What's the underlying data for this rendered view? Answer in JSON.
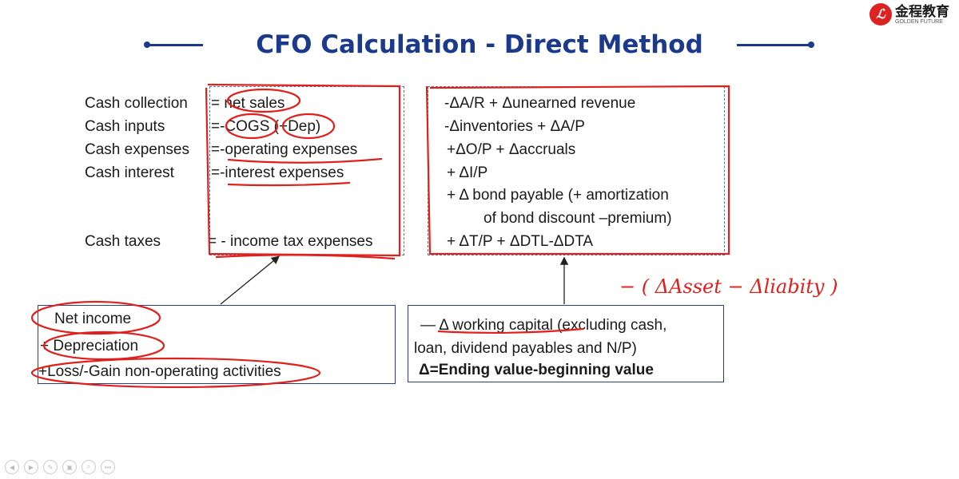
{
  "logo": {
    "cn": "金程教育",
    "en": "GOLDEN FUTURE"
  },
  "title": "CFO Calculation - Direct Method",
  "rows": [
    {
      "label": "Cash collection",
      "formula": "=  net sales",
      "adjust": "-ΔA/R + Δunearned  revenue"
    },
    {
      "label": "Cash inputs",
      "formula": "=-COGS (+Dep)",
      "adjust": "-Δinventories + ΔA/P"
    },
    {
      "label": "Cash expenses",
      "formula": "=-operating expenses",
      "adjust": "+ΔO/P + Δaccruals"
    },
    {
      "label": "Cash interest",
      "formula": "=-interest expenses",
      "adjust": "+ ΔI/P"
    }
  ],
  "bond_line1": "+ Δ bond payable (+ amortization",
  "bond_line2": "of bond discount –premium)",
  "taxes": {
    "label": "Cash taxes",
    "formula": "= - income tax expenses",
    "adjust": "+ ΔT/P + ΔDTL-ΔDTA"
  },
  "left_box": [
    "Net income",
    "+ Depreciation",
    "+Loss/-Gain non-operating activities"
  ],
  "right_box": {
    "line1": "— Δ working capital (excluding cash,",
    "line2": "loan, dividend payables and N/P)",
    "line3": "Δ=Ending value-beginning value"
  },
  "handwriting": "− ( ΔAsset − Δliabity )",
  "nav_icons": [
    "prev-icon",
    "next-icon",
    "pen-icon",
    "print-icon",
    "zoom-icon",
    "more-icon"
  ],
  "colors": {
    "title": "#1b3a8c",
    "annotation": "#e0201c"
  }
}
